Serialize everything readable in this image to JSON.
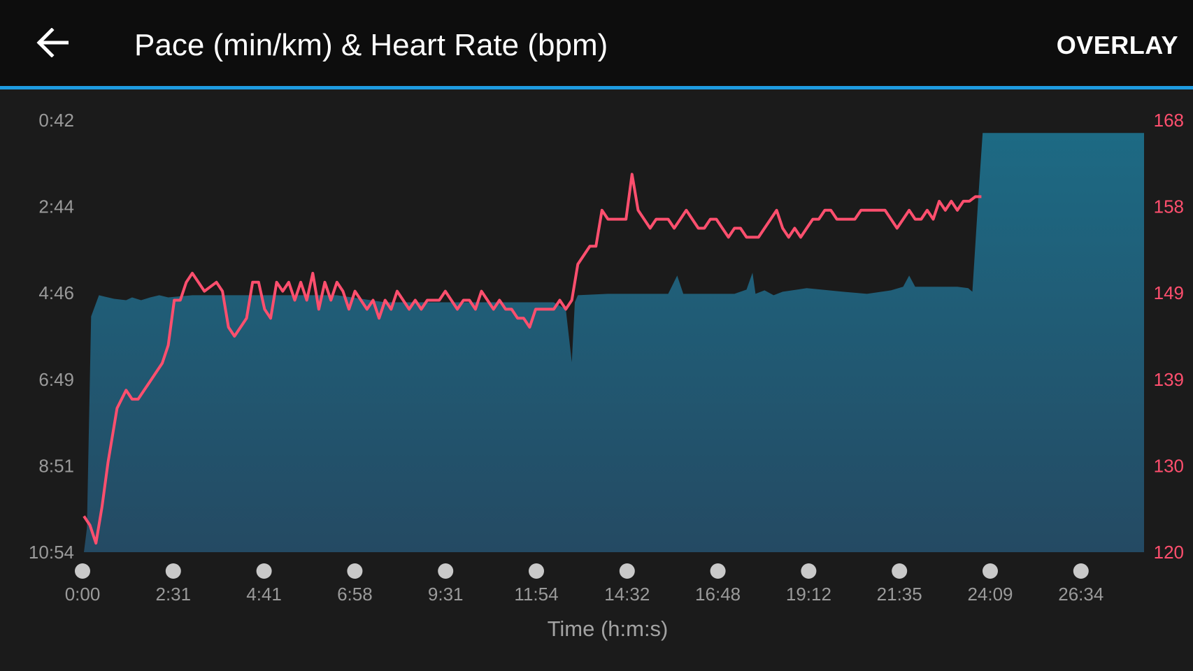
{
  "header": {
    "title": "Pace (min/km) & Heart Rate (bpm)",
    "overlay_label": "OVERLAY",
    "back_icon": "arrow-left-icon"
  },
  "colors": {
    "accent": "#1e9be0",
    "pace_fill_top": "#1d6a84",
    "pace_fill_bottom": "#244a63",
    "heart_rate": "#ff4f6e"
  },
  "chart_data": {
    "type": "area",
    "xlabel": "Time (h:m:s)",
    "x_ticks": [
      "0:00",
      "2:31",
      "4:41",
      "6:58",
      "9:31",
      "11:54",
      "14:32",
      "16:48",
      "19:12",
      "21:35",
      "24:09",
      "26:34"
    ],
    "x_range_seconds": [
      0,
      1760
    ],
    "left_axis": {
      "ticks": [
        "0:42",
        "2:44",
        "4:46",
        "6:49",
        "8:51",
        "10:54"
      ],
      "range_seconds_per_km": [
        42,
        654
      ],
      "inverted": true
    },
    "right_axis": {
      "ticks": [
        "168",
        "158",
        "149",
        "139",
        "130",
        "120"
      ],
      "range_bpm": [
        120,
        168
      ]
    },
    "series": [
      {
        "kind": "area",
        "axis": "left",
        "points": [
          [
            0,
            654
          ],
          [
            5,
            620
          ],
          [
            12,
            320
          ],
          [
            25,
            290
          ],
          [
            35,
            292
          ],
          [
            50,
            295
          ],
          [
            70,
            297
          ],
          [
            80,
            293
          ],
          [
            95,
            297
          ],
          [
            110,
            293
          ],
          [
            125,
            290
          ],
          [
            140,
            293
          ],
          [
            180,
            290
          ],
          [
            250,
            290
          ],
          [
            350,
            290
          ],
          [
            420,
            290
          ],
          [
            500,
            300
          ],
          [
            600,
            300
          ],
          [
            700,
            300
          ],
          [
            780,
            300
          ],
          [
            800,
            310
          ],
          [
            810,
            385
          ],
          [
            815,
            300
          ],
          [
            820,
            290
          ],
          [
            870,
            288
          ],
          [
            970,
            288
          ],
          [
            985,
            262
          ],
          [
            995,
            288
          ],
          [
            1000,
            288
          ],
          [
            1080,
            288
          ],
          [
            1100,
            282
          ],
          [
            1110,
            258
          ],
          [
            1115,
            288
          ],
          [
            1130,
            283
          ],
          [
            1145,
            290
          ],
          [
            1160,
            285
          ],
          [
            1200,
            280
          ],
          [
            1260,
            285
          ],
          [
            1300,
            288
          ],
          [
            1340,
            283
          ],
          [
            1360,
            278
          ],
          [
            1370,
            262
          ],
          [
            1380,
            278
          ],
          [
            1450,
            278
          ],
          [
            1468,
            280
          ],
          [
            1475,
            285
          ],
          [
            1485,
            150
          ],
          [
            1492,
            60
          ]
        ]
      },
      {
        "kind": "line",
        "axis": "right",
        "points": [
          [
            0,
            124
          ],
          [
            10,
            123
          ],
          [
            20,
            121
          ],
          [
            30,
            125
          ],
          [
            40,
            130
          ],
          [
            55,
            136
          ],
          [
            70,
            138
          ],
          [
            80,
            137
          ],
          [
            90,
            137
          ],
          [
            100,
            138
          ],
          [
            110,
            139
          ],
          [
            120,
            140
          ],
          [
            130,
            141
          ],
          [
            140,
            143
          ],
          [
            150,
            148
          ],
          [
            160,
            148
          ],
          [
            170,
            150
          ],
          [
            180,
            151
          ],
          [
            190,
            150
          ],
          [
            200,
            149
          ],
          [
            210,
            149.5
          ],
          [
            220,
            150
          ],
          [
            230,
            149
          ],
          [
            240,
            145
          ],
          [
            250,
            144
          ],
          [
            260,
            145
          ],
          [
            270,
            146
          ],
          [
            280,
            150
          ],
          [
            290,
            150
          ],
          [
            300,
            147
          ],
          [
            310,
            146
          ],
          [
            320,
            150
          ],
          [
            330,
            149
          ],
          [
            340,
            150
          ],
          [
            350,
            148
          ],
          [
            360,
            150
          ],
          [
            370,
            148
          ],
          [
            380,
            151
          ],
          [
            390,
            147
          ],
          [
            400,
            150
          ],
          [
            410,
            148
          ],
          [
            420,
            150
          ],
          [
            430,
            149
          ],
          [
            440,
            147
          ],
          [
            450,
            149
          ],
          [
            460,
            148
          ],
          [
            470,
            147
          ],
          [
            480,
            148
          ],
          [
            490,
            146
          ],
          [
            500,
            148
          ],
          [
            510,
            147
          ],
          [
            520,
            149
          ],
          [
            530,
            148
          ],
          [
            540,
            147
          ],
          [
            550,
            148
          ],
          [
            560,
            147
          ],
          [
            570,
            148
          ],
          [
            580,
            148
          ],
          [
            590,
            148
          ],
          [
            600,
            149
          ],
          [
            610,
            148
          ],
          [
            620,
            147
          ],
          [
            630,
            148
          ],
          [
            640,
            148
          ],
          [
            650,
            147
          ],
          [
            660,
            149
          ],
          [
            670,
            148
          ],
          [
            680,
            147
          ],
          [
            690,
            148
          ],
          [
            700,
            147
          ],
          [
            710,
            147
          ],
          [
            720,
            146
          ],
          [
            730,
            146
          ],
          [
            740,
            145
          ],
          [
            750,
            147
          ],
          [
            760,
            147
          ],
          [
            770,
            147
          ],
          [
            780,
            147
          ],
          [
            790,
            148
          ],
          [
            800,
            147
          ],
          [
            810,
            148
          ],
          [
            820,
            152
          ],
          [
            830,
            153
          ],
          [
            840,
            154
          ],
          [
            850,
            154
          ],
          [
            860,
            158
          ],
          [
            870,
            157
          ],
          [
            880,
            157
          ],
          [
            890,
            157
          ],
          [
            900,
            157
          ],
          [
            910,
            162
          ],
          [
            920,
            158
          ],
          [
            930,
            157
          ],
          [
            940,
            156
          ],
          [
            950,
            157
          ],
          [
            960,
            157
          ],
          [
            970,
            157
          ],
          [
            980,
            156
          ],
          [
            990,
            157
          ],
          [
            1000,
            158
          ],
          [
            1010,
            157
          ],
          [
            1020,
            156
          ],
          [
            1030,
            156
          ],
          [
            1040,
            157
          ],
          [
            1050,
            157
          ],
          [
            1060,
            156
          ],
          [
            1070,
            155
          ],
          [
            1080,
            156
          ],
          [
            1090,
            156
          ],
          [
            1100,
            155
          ],
          [
            1110,
            155
          ],
          [
            1120,
            155
          ],
          [
            1130,
            156
          ],
          [
            1140,
            157
          ],
          [
            1150,
            158
          ],
          [
            1160,
            156
          ],
          [
            1170,
            155
          ],
          [
            1180,
            156
          ],
          [
            1190,
            155
          ],
          [
            1200,
            156
          ],
          [
            1210,
            157
          ],
          [
            1220,
            157
          ],
          [
            1230,
            158
          ],
          [
            1240,
            158
          ],
          [
            1250,
            157
          ],
          [
            1260,
            157
          ],
          [
            1270,
            157
          ],
          [
            1280,
            157
          ],
          [
            1290,
            158
          ],
          [
            1300,
            158
          ],
          [
            1310,
            158
          ],
          [
            1320,
            158
          ],
          [
            1330,
            158
          ],
          [
            1340,
            157
          ],
          [
            1350,
            156
          ],
          [
            1360,
            157
          ],
          [
            1370,
            158
          ],
          [
            1380,
            157
          ],
          [
            1390,
            157
          ],
          [
            1400,
            158
          ],
          [
            1410,
            157
          ],
          [
            1420,
            159
          ],
          [
            1430,
            158
          ],
          [
            1440,
            159
          ],
          [
            1450,
            158
          ],
          [
            1460,
            159
          ],
          [
            1470,
            159
          ],
          [
            1480,
            159.5
          ],
          [
            1490,
            159.5
          ]
        ]
      }
    ],
    "legend": "none",
    "grid": false
  }
}
